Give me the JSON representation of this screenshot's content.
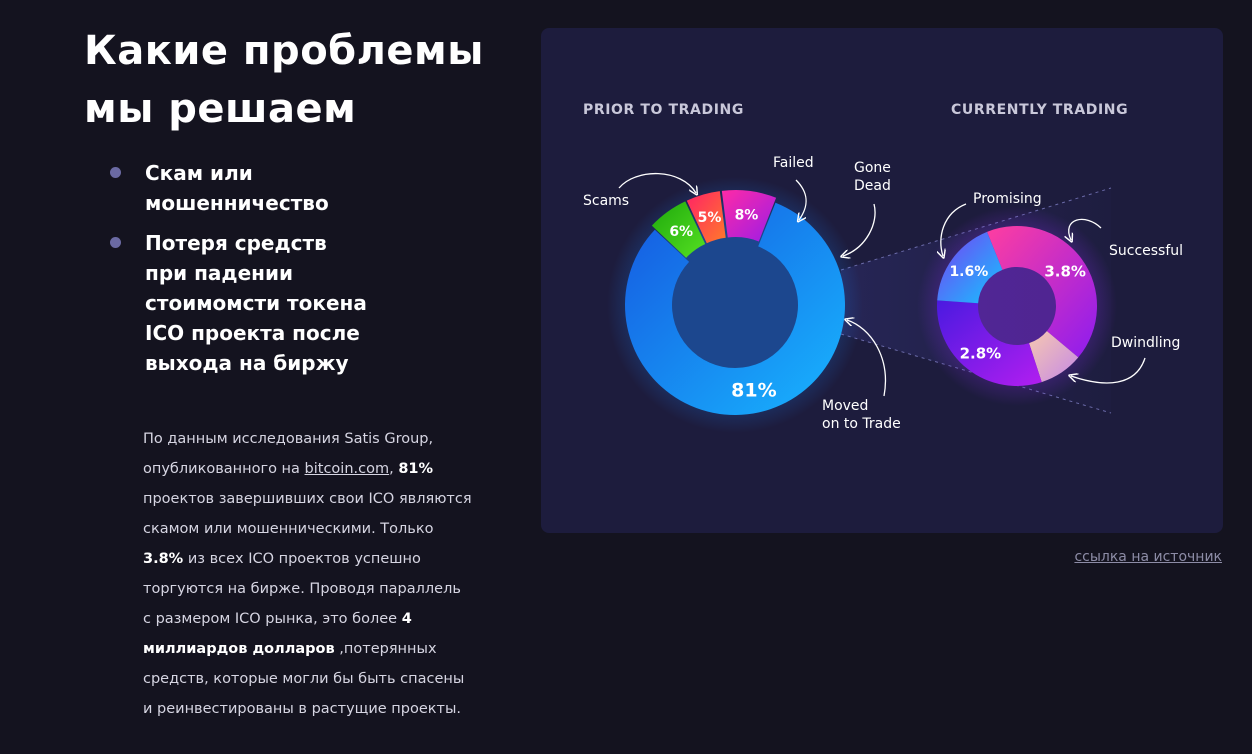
{
  "heading": {
    "line1": "Какие проблемы",
    "line2": "мы решаем"
  },
  "bullets": [
    {
      "line1": "Скам или",
      "line2": "мошенничество"
    },
    {
      "line1": "Потеря средств",
      "line2": "при падении",
      "line3": "стоимомсти токена",
      "line4": "ICO проекта после",
      "line5": "выхода на биржу"
    }
  ],
  "paragraph": {
    "p1": "По данным исследования Satis Group, опубликованного на ",
    "link": "bitcoin.com",
    "p2": ", ",
    "b1": "81%",
    "p3": " проектов завершивших свои ICO являются скамом или мошенническими. Только ",
    "b2": "3.8%",
    "p4": " из всех ICO проектов успешно торгуются на бирже. Проводя параллель с размером ICO рынка, это более ",
    "b3": "4 миллиардов долларов",
    "p5": " ,потерянных средств, которые могли бы быть спасены и реинвестированы в растущие проекты."
  },
  "source_link": "ссылка на источник",
  "colors": {
    "background": "#14131f",
    "panel": "#1d1c3d",
    "scams": "#1a7cf0",
    "failed": "#2bbd14",
    "gone_dead": "#ff3a6a",
    "moved": "#cc22d6",
    "promising": "#1fa0ff",
    "successful": "#e83cc8",
    "dwindling": "#f0b8c8",
    "fourth_segment": "#5a1ee8"
  },
  "chart_data": [
    {
      "type": "pie",
      "title": "PRIOR TO TRADING",
      "donut": true,
      "slices": [
        {
          "label": "Scams",
          "value": 81,
          "display": "81%"
        },
        {
          "label": "Failed",
          "value": 6,
          "display": "6%"
        },
        {
          "label": "Gone Dead",
          "value": 5,
          "display": "5%"
        },
        {
          "label": "Moved on to Trade",
          "value": 8,
          "display": "8%"
        }
      ]
    },
    {
      "type": "pie",
      "title": "CURRENTLY TRADING",
      "donut": true,
      "slices": [
        {
          "label": "Successful",
          "value": 3.8,
          "display": "3.8%"
        },
        {
          "label": "Dwindling",
          "value": 0.8,
          "display": ""
        },
        {
          "label": "",
          "value": 2.8,
          "display": "2.8%"
        },
        {
          "label": "Promising",
          "value": 1.6,
          "display": "1.6%"
        }
      ]
    }
  ],
  "callouts": {
    "scams": "Scams",
    "failed": "Failed",
    "gone_dead_1": "Gone",
    "gone_dead_2": "Dead",
    "moved_1": "Moved",
    "moved_2": "on to Trade",
    "promising": "Promising",
    "successful": "Successful",
    "dwindling": "Dwindling"
  }
}
